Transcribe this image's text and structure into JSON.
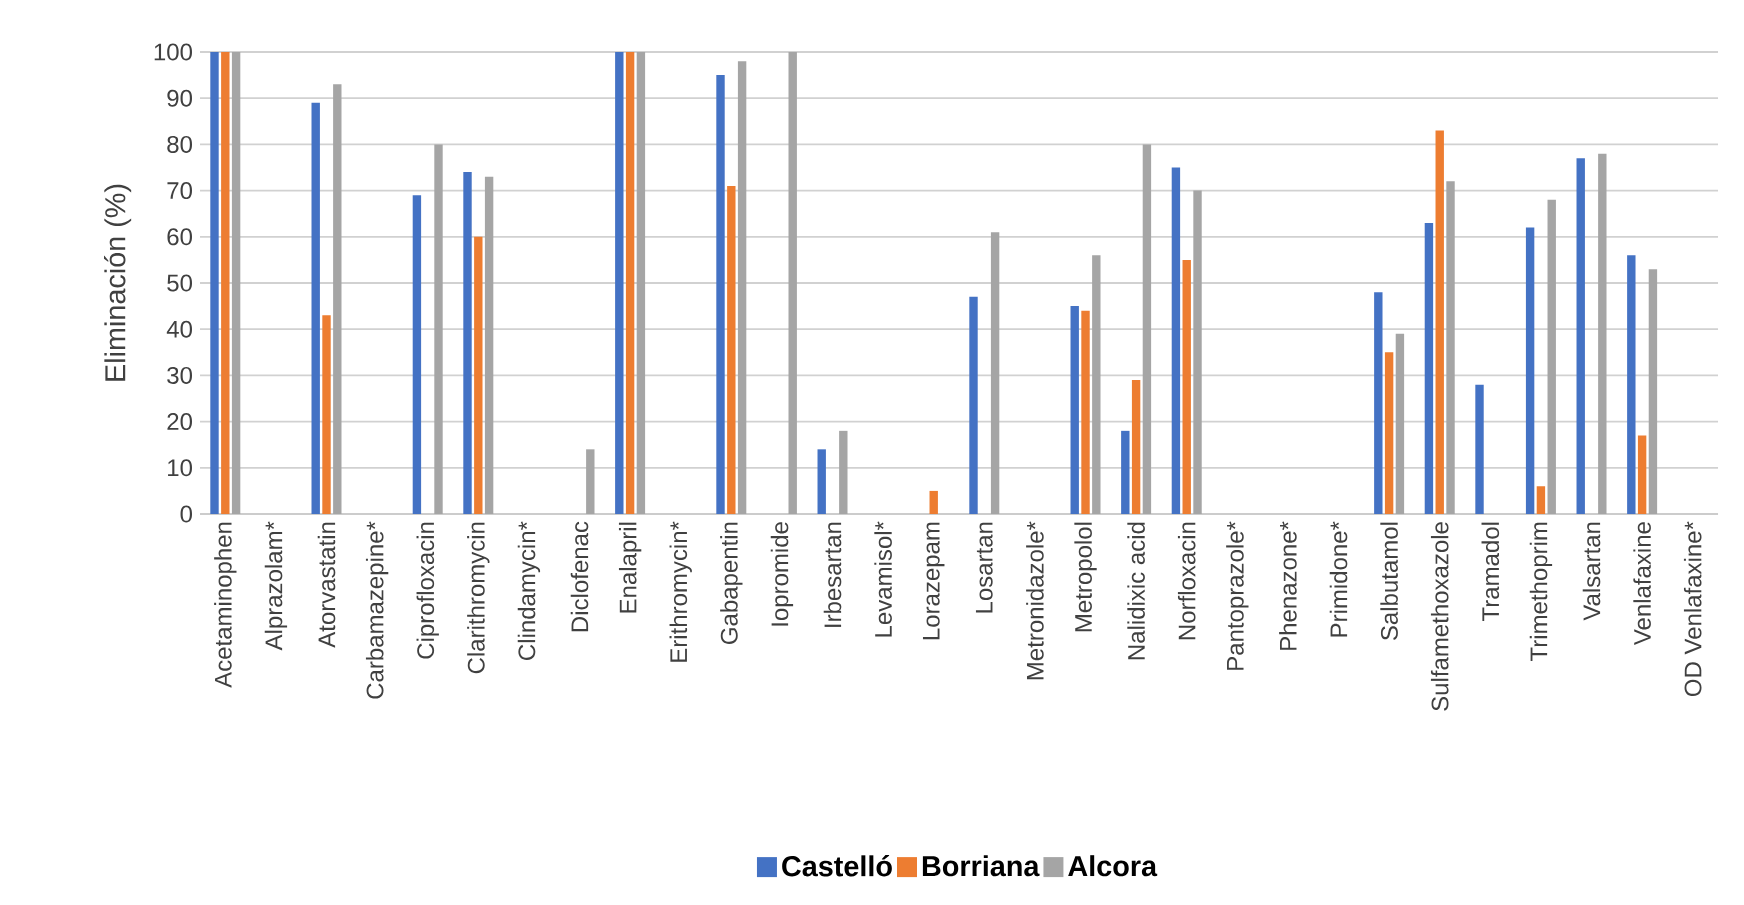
{
  "chart_data": {
    "type": "bar",
    "ylabel": "Eliminación (%)",
    "categories": [
      "Acetaminophen",
      "Alprazolam*",
      "Atorvastatin",
      "Carbamazepine*",
      "Ciprofloxacin",
      "Clarithromycin",
      "Clindamycin*",
      "Diclofenac",
      "Enalapril",
      "Erithromycin*",
      "Gabapentin",
      "Iopromide",
      "Irbesartan",
      "Levamisol*",
      "Lorazepam",
      "Losartan",
      "Metronidazole*",
      "Metropolol",
      "Nalidixic acid",
      "Norfloxacin",
      "Pantoprazole*",
      "Phenazone*",
      "Primidone*",
      "Salbutamol",
      "Sulfamethoxazole",
      "Tramadol",
      "Trimethoprim",
      "Valsartan",
      "Venlafaxine",
      "OD Venlafaxine*"
    ],
    "series": [
      {
        "name": "Castelló",
        "color": "#4472c4",
        "values": [
          100,
          null,
          89,
          null,
          69,
          74,
          null,
          null,
          100,
          null,
          95,
          null,
          14,
          null,
          null,
          47,
          null,
          45,
          18,
          75,
          null,
          null,
          null,
          48,
          63,
          28,
          62,
          77,
          56,
          null
        ]
      },
      {
        "name": "Borriana",
        "color": "#ed7d31",
        "values": [
          100,
          null,
          43,
          null,
          null,
          60,
          null,
          null,
          100,
          null,
          71,
          null,
          null,
          null,
          5,
          null,
          null,
          44,
          29,
          55,
          null,
          null,
          null,
          35,
          83,
          null,
          6,
          null,
          17,
          null
        ]
      },
      {
        "name": "Alcora",
        "color": "#a5a5a5",
        "values": [
          100,
          null,
          93,
          null,
          80,
          73,
          null,
          14,
          100,
          null,
          98,
          100,
          18,
          null,
          null,
          61,
          null,
          56,
          80,
          70,
          null,
          null,
          null,
          39,
          72,
          null,
          68,
          78,
          53,
          null
        ]
      }
    ],
    "ylim": [
      0,
      100
    ],
    "yticks": [
      0,
      10,
      20,
      30,
      40,
      50,
      60,
      70,
      80,
      90,
      100
    ],
    "grid": "y",
    "legend": "bottom"
  }
}
